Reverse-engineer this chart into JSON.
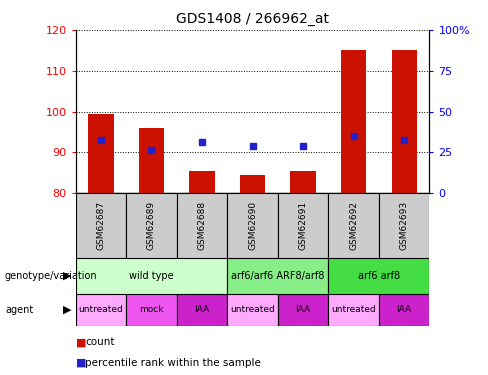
{
  "title": "GDS1408 / 266962_at",
  "samples": [
    "GSM62687",
    "GSM62689",
    "GSM62688",
    "GSM62690",
    "GSM62691",
    "GSM62692",
    "GSM62693"
  ],
  "bar_values": [
    99.5,
    96.0,
    85.5,
    84.5,
    85.5,
    115.0,
    115.0
  ],
  "bar_bottom": 80,
  "blue_dot_values": [
    93.0,
    90.5,
    92.5,
    91.5,
    91.5,
    94.0,
    93.0
  ],
  "ylim_left": [
    80,
    120
  ],
  "ylim_right": [
    0,
    100
  ],
  "yticks_left": [
    80,
    90,
    100,
    110,
    120
  ],
  "yticks_right": [
    0,
    25,
    50,
    75,
    100
  ],
  "ytick_labels_right": [
    "0",
    "25",
    "50",
    "75",
    "100%"
  ],
  "bar_color": "#cc1100",
  "dot_color": "#2222cc",
  "genotype_groups": [
    {
      "label": "wild type",
      "start": 0,
      "end": 3,
      "color": "#ccffcc"
    },
    {
      "label": "arf6/arf6 ARF8/arf8",
      "start": 3,
      "end": 5,
      "color": "#88ee88"
    },
    {
      "label": "arf6 arf8",
      "start": 5,
      "end": 7,
      "color": "#44dd44"
    }
  ],
  "agent_labels": [
    "untreated",
    "mock",
    "IAA",
    "untreated",
    "IAA",
    "untreated",
    "IAA"
  ],
  "agent_colors": [
    "#ffaaff",
    "#ee55ee",
    "#cc22cc",
    "#ffaaff",
    "#cc22cc",
    "#ffaaff",
    "#cc22cc"
  ],
  "sample_box_color": "#cccccc"
}
